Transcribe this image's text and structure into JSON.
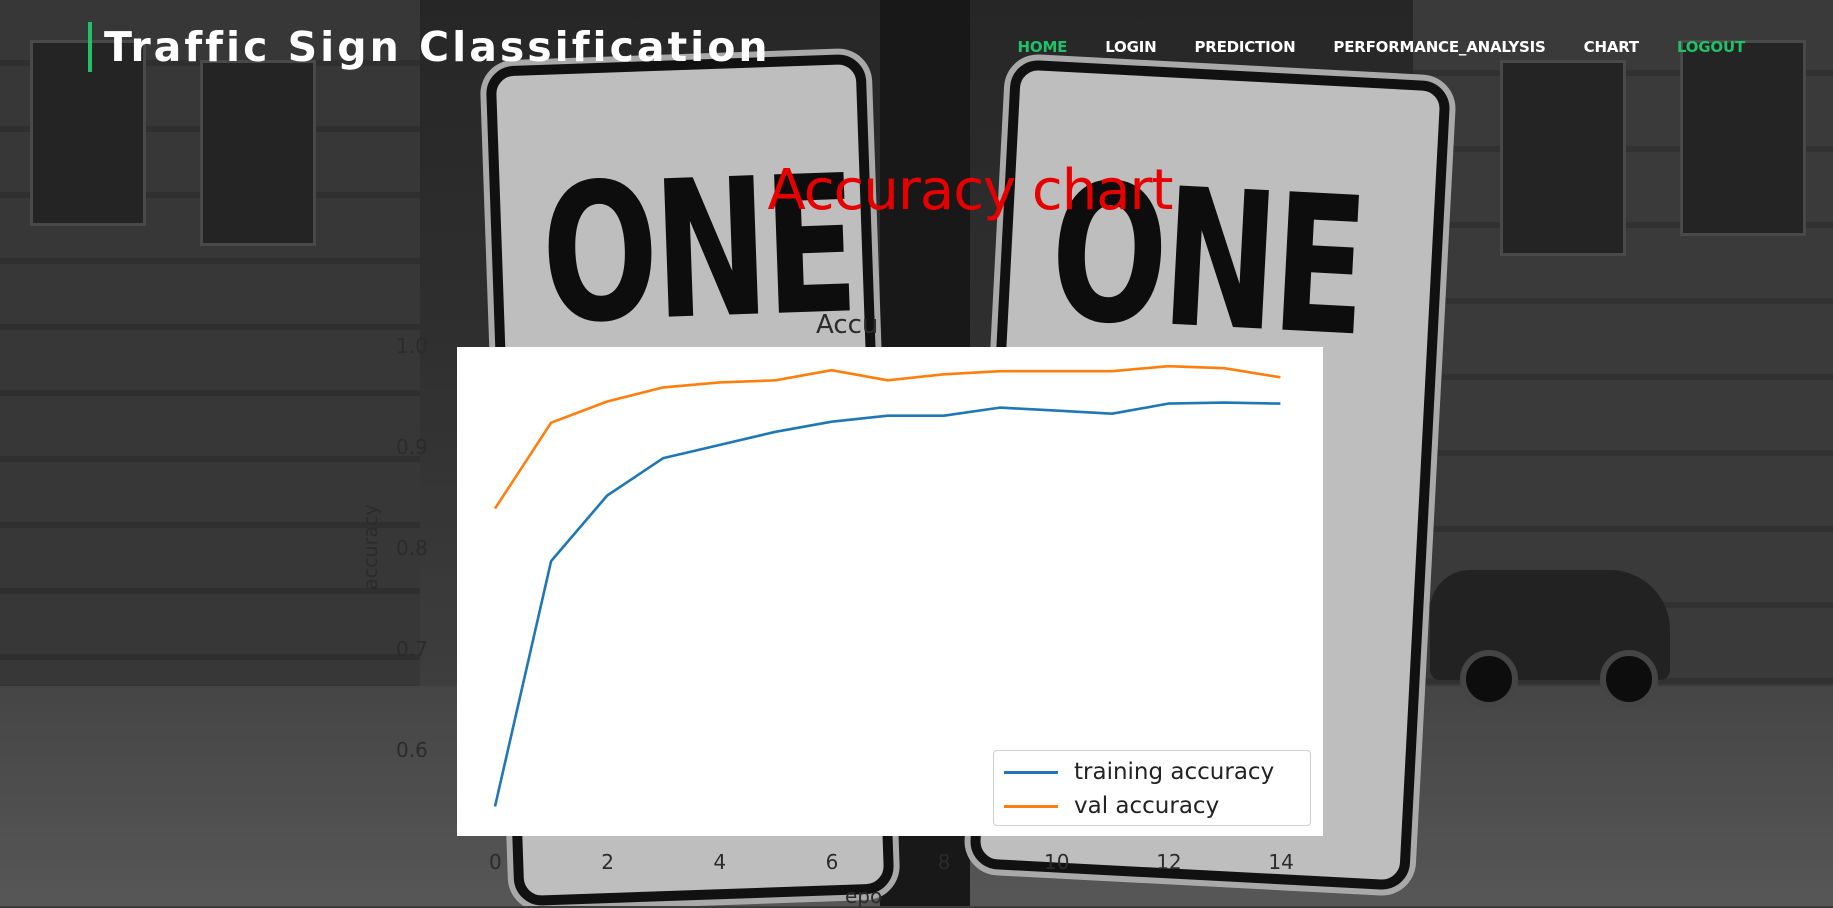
{
  "header": {
    "brand_title": "Traffic Sign Classification",
    "brand_accent": "#21c16a",
    "nav": [
      {
        "label": "HOME",
        "color": "#21c16a"
      },
      {
        "label": "LOGIN",
        "color": "#ffffff"
      },
      {
        "label": "PREDICTION",
        "color": "#ffffff"
      },
      {
        "label": "PERFORMANCE_ANALYSIS",
        "color": "#ffffff"
      },
      {
        "label": "CHART",
        "color": "#ffffff"
      },
      {
        "label": "LOGOUT",
        "color": "#21c16a"
      }
    ]
  },
  "main": {
    "page_title": "Accuracy chart",
    "page_title_color": "#e60000",
    "background_scene": {
      "sign_left_text": "ONE",
      "sign_right_text": "ONE"
    },
    "chart_ghost": {
      "title": "Accu",
      "ylabel": "accuracy",
      "xlabel": "epo"
    }
  },
  "chart_data": {
    "type": "line",
    "title": "",
    "xlabel": "",
    "ylabel": "",
    "xlim": [
      -0.5,
      14.5
    ],
    "ylim": [
      0.54,
      1.0
    ],
    "y_ticks": [
      "1.0",
      "0.9",
      "0.8",
      "0.7",
      "0.6"
    ],
    "y_tick_values": [
      1.0,
      0.9,
      0.8,
      0.7,
      0.6
    ],
    "x_ticks": [
      "0",
      "2",
      "4",
      "6",
      "8",
      "10",
      "12",
      "14"
    ],
    "x_tick_values": [
      0,
      2,
      4,
      6,
      8,
      10,
      12,
      14
    ],
    "legend_position": "lower-right",
    "grid": false,
    "x": [
      0,
      1,
      2,
      3,
      4,
      5,
      6,
      7,
      8,
      9,
      10,
      11,
      12,
      13,
      14
    ],
    "series": [
      {
        "name": "training accuracy",
        "color": "#1f77b4",
        "values": [
          0.545,
          0.788,
          0.853,
          0.89,
          0.903,
          0.916,
          0.926,
          0.932,
          0.932,
          0.94,
          0.937,
          0.934,
          0.944,
          0.945,
          0.944
        ]
      },
      {
        "name": "val accuracy",
        "color": "#ff7f0e",
        "values": [
          0.84,
          0.925,
          0.946,
          0.96,
          0.965,
          0.967,
          0.977,
          0.967,
          0.973,
          0.976,
          0.976,
          0.976,
          0.981,
          0.979,
          0.97
        ]
      }
    ]
  }
}
